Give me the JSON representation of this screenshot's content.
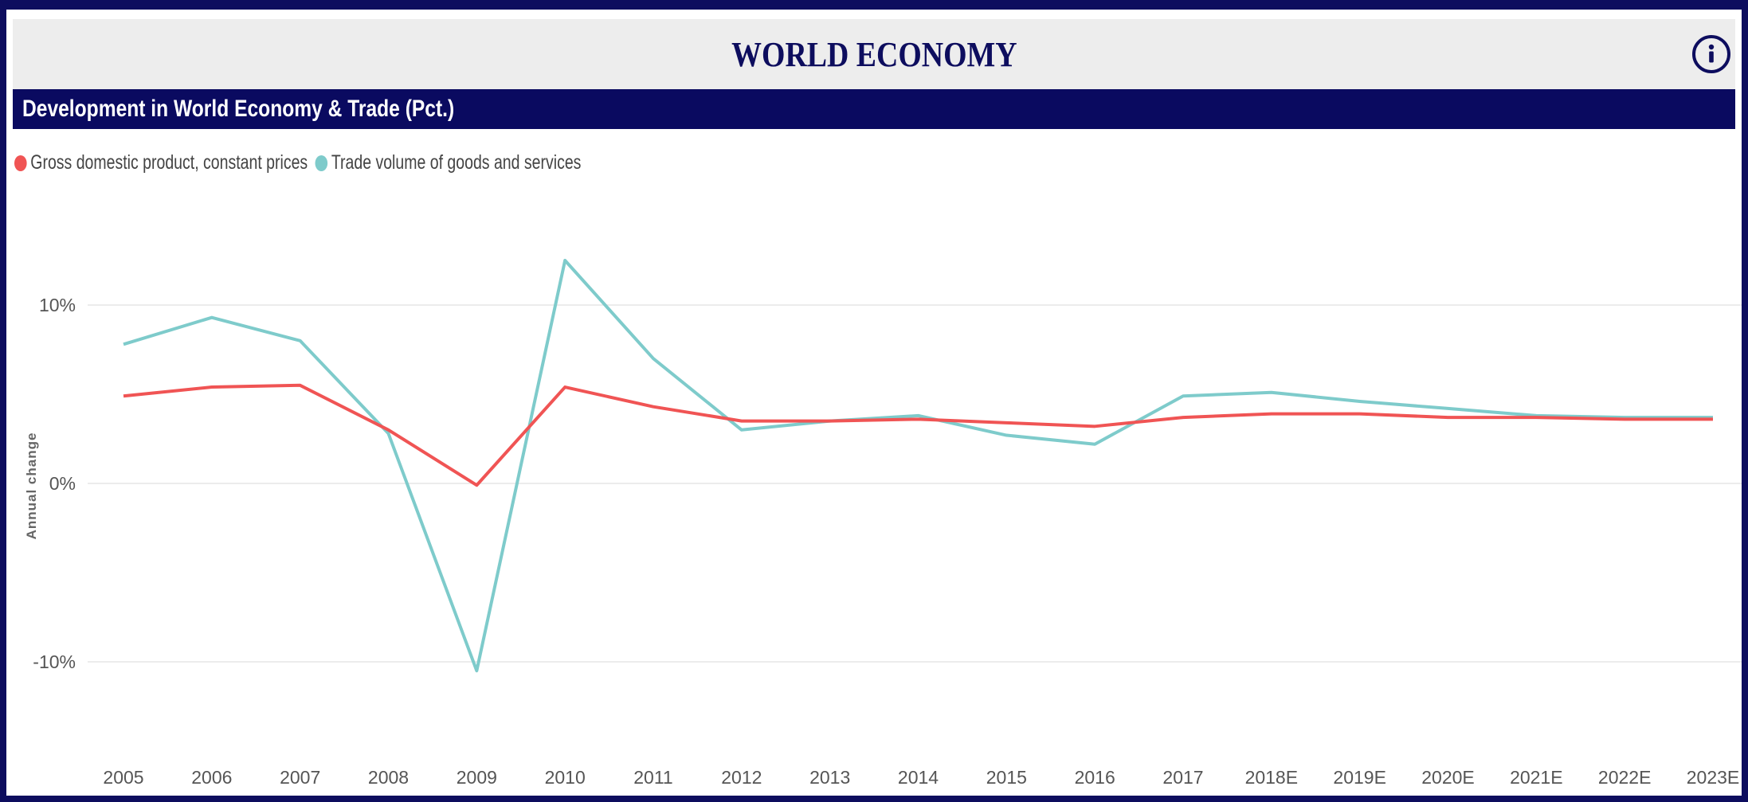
{
  "header": {
    "title": "WORLD ECONOMY",
    "info_icon": "info-circle-icon"
  },
  "panel": {
    "subtitle": "Development in World Economy & Trade (Pct.)"
  },
  "colors": {
    "brand_navy": "#0d0d5e",
    "gdp": "#f05454",
    "trade": "#7ecbcb"
  },
  "chart_data": {
    "type": "line",
    "title": "Development in World Economy & Trade (Pct.)",
    "xlabel": "",
    "ylabel": "Annual change",
    "categories": [
      "2005",
      "2006",
      "2007",
      "2008",
      "2009",
      "2010",
      "2011",
      "2012",
      "2013",
      "2014",
      "2015",
      "2016",
      "2017",
      "2018E",
      "2019E",
      "2020E",
      "2021E",
      "2022E",
      "2023E"
    ],
    "series": [
      {
        "name": "Gross domestic product, constant prices",
        "color": "#f05454",
        "values": [
          4.9,
          5.4,
          5.5,
          3.0,
          -0.1,
          5.4,
          4.3,
          3.5,
          3.5,
          3.6,
          3.4,
          3.2,
          3.7,
          3.9,
          3.9,
          3.7,
          3.7,
          3.6,
          3.6
        ]
      },
      {
        "name": "Trade volume of goods and services",
        "color": "#7ecbcb",
        "values": [
          7.8,
          9.3,
          8.0,
          2.8,
          -10.5,
          12.5,
          7.0,
          3.0,
          3.5,
          3.8,
          2.7,
          2.2,
          4.9,
          5.1,
          4.6,
          4.2,
          3.8,
          3.7,
          3.7
        ]
      }
    ],
    "yticks": [
      {
        "value": 10,
        "label": "10%"
      },
      {
        "value": 0,
        "label": "0%"
      },
      {
        "value": -10,
        "label": "-10%"
      }
    ],
    "ylim": [
      -15,
      15
    ],
    "grid": true,
    "legend_position": "top-left"
  }
}
